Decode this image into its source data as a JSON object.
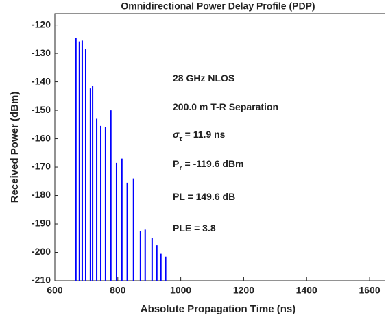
{
  "chart_data": {
    "type": "stem",
    "title": "Omnidirectional Power Delay Profile (PDP)",
    "x_label": "Absolute Propagation Time (ns)",
    "y_label": "Received Power (dBm)",
    "color": "#0000ff",
    "x": [
      667,
      678,
      687,
      698,
      713,
      720,
      733,
      746,
      761,
      778,
      796,
      813,
      830,
      850,
      872,
      887,
      909,
      924,
      937,
      952
    ],
    "values": [
      -124.5,
      -125.8,
      -125.5,
      -128.3,
      -142.3,
      -141.3,
      -153,
      -155.5,
      -156,
      -150,
      -168.5,
      -167,
      -175.5,
      -174,
      -192.5,
      -192,
      -195,
      -197.5,
      -200.5,
      -201.5
    ],
    "xlim": [
      600,
      1650
    ],
    "ylim": [
      -210,
      -116
    ],
    "xticks": [
      600,
      800,
      1000,
      1200,
      1400,
      1600
    ],
    "yticks": [
      -210,
      -200,
      -190,
      -180,
      -170,
      -160,
      -150,
      -140,
      -130,
      -120
    ],
    "annotations": [
      {
        "text": "28 GHz NLOS"
      },
      {
        "text": "200.0 m T-R Separation"
      },
      {
        "symbol": "σ",
        "sub": "τ",
        "text": " = 11.9 ns"
      },
      {
        "symbol": "P",
        "sub": "r",
        "text": " = -119.6 dBm"
      },
      {
        "text": "PL = 149.6 dB"
      },
      {
        "text": "PLE = 3.8"
      }
    ]
  }
}
